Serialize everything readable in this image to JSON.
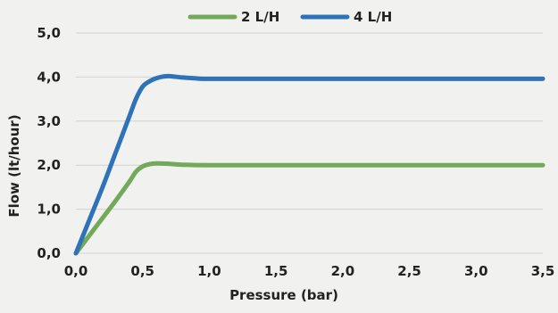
{
  "chart_data": {
    "type": "line",
    "title": "",
    "xlabel": "Pressure (bar)",
    "ylabel": "Flow (lt/hour)",
    "xlim": [
      0,
      3.5
    ],
    "ylim": [
      0,
      5
    ],
    "x_ticks": [
      "0,0",
      "0,5",
      "1,0",
      "1,5",
      "2,0",
      "2,5",
      "3,0",
      "3,5"
    ],
    "y_ticks": [
      "0,0",
      "1,0",
      "2,0",
      "3,0",
      "4,0",
      "5,0"
    ],
    "grid": "horizontal",
    "legend_position": "top",
    "series": [
      {
        "name": "2 L/H",
        "color": "#73a95a",
        "x": [
          0,
          0.1,
          0.2,
          0.3,
          0.4,
          0.45,
          0.5,
          0.55,
          0.6,
          0.7,
          0.8,
          1.0,
          1.5,
          2.0,
          2.5,
          3.0,
          3.5
        ],
        "y": [
          0,
          0.4,
          0.8,
          1.2,
          1.62,
          1.85,
          1.97,
          2.02,
          2.04,
          2.03,
          2.01,
          2.0,
          2.0,
          2.0,
          2.0,
          2.0,
          2.0
        ]
      },
      {
        "name": "4 L/H",
        "color": "#2e72b8",
        "x": [
          0,
          0.1,
          0.2,
          0.3,
          0.4,
          0.45,
          0.5,
          0.55,
          0.6,
          0.65,
          0.7,
          0.8,
          0.9,
          1.0,
          1.5,
          2.0,
          2.5,
          3.0,
          3.5
        ],
        "y": [
          0,
          0.75,
          1.5,
          2.3,
          3.1,
          3.5,
          3.78,
          3.9,
          3.97,
          4.01,
          4.02,
          3.99,
          3.97,
          3.96,
          3.96,
          3.96,
          3.96,
          3.96,
          3.96
        ]
      }
    ]
  }
}
